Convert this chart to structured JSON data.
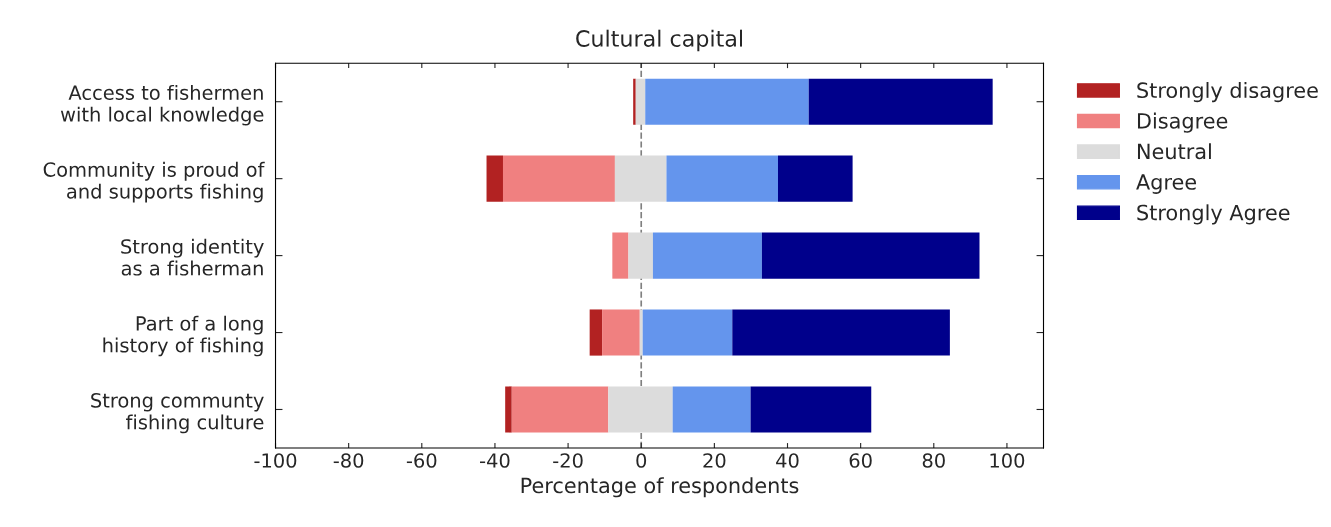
{
  "chart_data": {
    "type": "bar",
    "orientation": "horizontal",
    "title": "Cultural capital",
    "xlabel": "Percentage of respondents",
    "categories": [
      "Access to fishermen\nwith local knowledge",
      "Community is proud of\nand supports fishing",
      "Strong identity\nas a fisherman",
      "Part of a long\nhistory of fishing",
      "Strong communty\nfishing culture"
    ],
    "series": [
      {
        "name": "Strongly disagree",
        "color": "#b22222",
        "base": [
          -2.2,
          -42.3,
          null,
          -14.1,
          -37.2
        ],
        "values": [
          0.7,
          4.5,
          null,
          3.4,
          1.8
        ]
      },
      {
        "name": "Disagree",
        "color": "#f08080",
        "base": [
          null,
          -37.8,
          -7.9,
          -10.7,
          -35.4
        ],
        "values": [
          null,
          30.6,
          4.4,
          10.3,
          26.4
        ]
      },
      {
        "name": "Neutral",
        "color": "#dcdcdc",
        "base": [
          -1.5,
          -7.2,
          -3.5,
          -0.4,
          -9.0
        ],
        "values": [
          2.6,
          14.1,
          6.7,
          0.8,
          17.6
        ]
      },
      {
        "name": "Agree",
        "color": "#6495ed",
        "base": [
          1.1,
          6.9,
          3.2,
          0.4,
          8.6
        ],
        "values": [
          44.7,
          30.5,
          29.8,
          24.5,
          21.3
        ]
      },
      {
        "name": "Strongly Agree",
        "color": "#00008b",
        "base": [
          45.8,
          37.4,
          33.0,
          24.9,
          29.9
        ],
        "values": [
          50.3,
          20.4,
          59.5,
          59.5,
          33.0
        ]
      }
    ],
    "xlim": [
      -100,
      110
    ],
    "xticks": [
      {
        "value": -100,
        "label": "-100"
      },
      {
        "value": -80,
        "label": "-80"
      },
      {
        "value": -60,
        "label": "-60"
      },
      {
        "value": -40,
        "label": "-40"
      },
      {
        "value": -20,
        "label": "-20"
      },
      0,
      20,
      40,
      60,
      80,
      100
    ],
    "ref_lines": [
      {
        "axis": "x",
        "value": 0,
        "color": "#808080",
        "line_style": "dashed"
      }
    ],
    "grid": false,
    "legend": "right"
  }
}
